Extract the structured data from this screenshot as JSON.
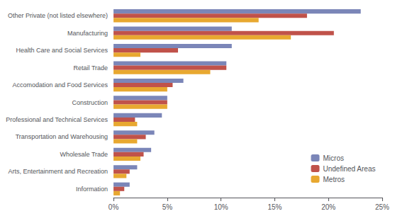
{
  "chart_data": {
    "type": "bar",
    "orientation": "horizontal",
    "categories": [
      "Other Private (not listed elsewhere)",
      "Manufacturing",
      "Health Care and Social Services",
      "Retail Trade",
      "Accomodation and Food Services",
      "Construction",
      "Professional and Technical Services",
      "Transportation and Warehousing",
      "Wholesale Trade",
      "Arts, Entertainment and Recreation",
      "Information"
    ],
    "series": [
      {
        "name": "Micros",
        "color": "#7b86b8",
        "values": [
          23.0,
          11.0,
          11.0,
          10.5,
          6.5,
          5.0,
          4.5,
          3.8,
          3.5,
          2.2,
          1.5
        ]
      },
      {
        "name": "Undefined Areas",
        "color": "#c0524a",
        "values": [
          18.0,
          20.5,
          6.0,
          10.5,
          5.5,
          5.0,
          2.0,
          3.0,
          2.8,
          1.5,
          1.0
        ]
      },
      {
        "name": "Metros",
        "color": "#e8a830",
        "values": [
          13.5,
          16.5,
          2.5,
          9.0,
          5.0,
          5.0,
          2.2,
          2.2,
          2.5,
          1.2,
          0.6
        ]
      }
    ],
    "xlim": [
      0,
      25
    ],
    "xticks": [
      {
        "value": 0,
        "label": "0%"
      },
      {
        "value": 5,
        "label": "5%"
      },
      {
        "value": 10,
        "label": "10%"
      },
      {
        "value": 15,
        "label": "15%"
      },
      {
        "value": 20,
        "label": "20%"
      },
      {
        "value": 25,
        "label": "25%"
      }
    ],
    "grid": false,
    "legend": "lower right"
  }
}
